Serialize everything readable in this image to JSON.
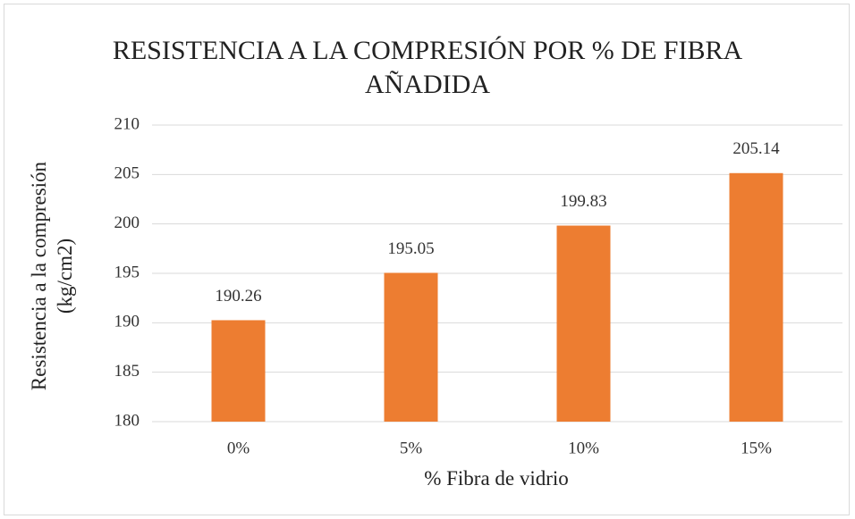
{
  "chart_data": {
    "type": "bar",
    "title": "RESISTENCIA A LA COMPRESIÓN POR % DE FIBRA AÑADIDA",
    "x_label": "% Fibra de vidrio",
    "y_label": "Resistencia a la compresión (kg/cm2)",
    "categories": [
      "0%",
      "5%",
      "10%",
      "15%"
    ],
    "values": [
      190.26,
      195.05,
      199.83,
      205.14
    ],
    "color": "#ed7d31",
    "ylim": [
      180,
      210
    ],
    "yticks": [
      180,
      185,
      190,
      195,
      200,
      205,
      210
    ],
    "grid": true
  }
}
